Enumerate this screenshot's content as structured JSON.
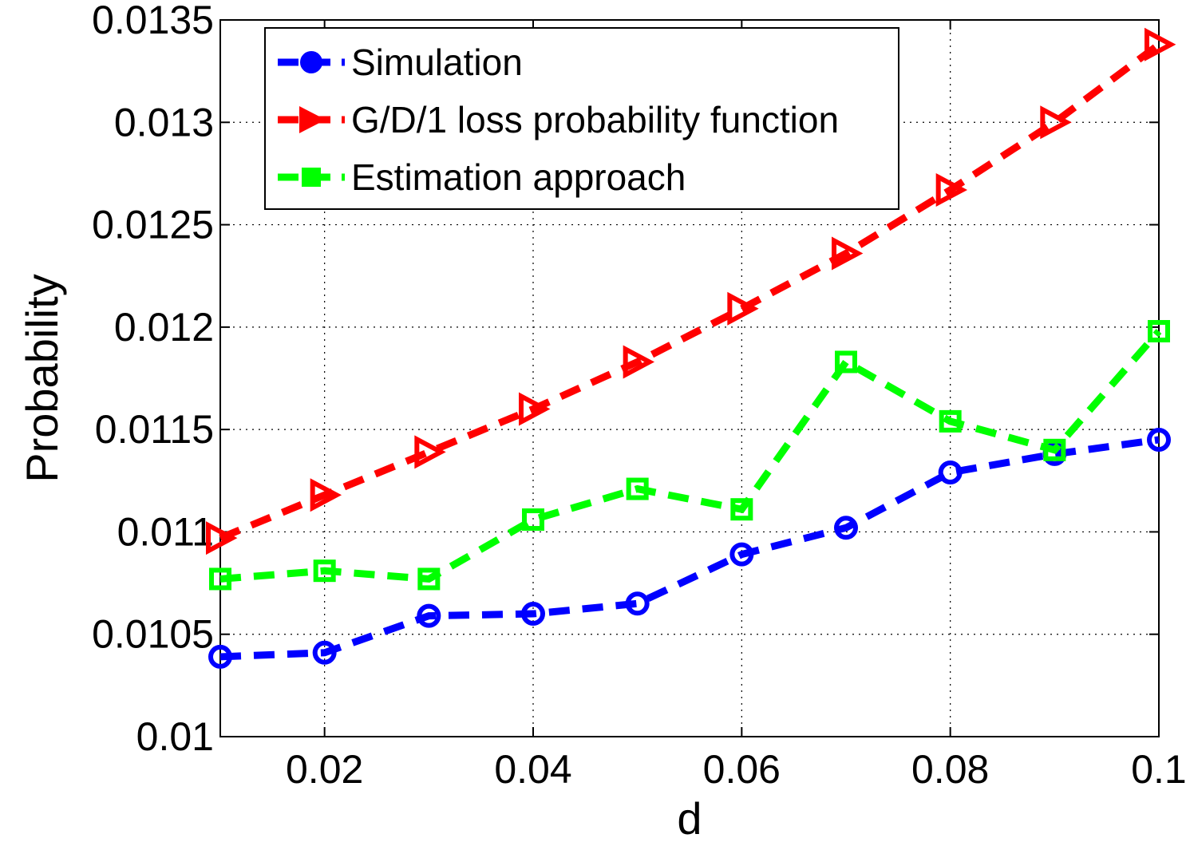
{
  "chart_data": {
    "type": "line",
    "title": "",
    "xlabel": "d",
    "ylabel": "Probability",
    "xlim": [
      0.01,
      0.1
    ],
    "ylim": [
      0.01,
      0.0135
    ],
    "grid": true,
    "legend_position": "top-left",
    "x_ticks": [
      0.02,
      0.04,
      0.06,
      0.08,
      0.1
    ],
    "x_tick_labels": [
      "0.02",
      "0.04",
      "0.06",
      "0.08",
      "0.1"
    ],
    "y_ticks": [
      0.01,
      0.0105,
      0.011,
      0.0115,
      0.012,
      0.0125,
      0.013,
      0.0135
    ],
    "y_tick_labels": [
      "0.01",
      "0.0105",
      "0.011",
      "0.0115",
      "0.012",
      "0.0125",
      "0.013",
      "0.0135"
    ],
    "x": [
      0.01,
      0.02,
      0.03,
      0.04,
      0.05,
      0.06,
      0.07,
      0.08,
      0.09,
      0.1
    ],
    "series": [
      {
        "name": "Simulation",
        "color": "#0000ff",
        "marker": "circle",
        "values": [
          0.01039,
          0.01041,
          0.01059,
          0.0106,
          0.01065,
          0.01089,
          0.01102,
          0.01129,
          0.01138,
          0.01145
        ]
      },
      {
        "name": "G/D/1 loss probability function",
        "color": "#ff0000",
        "marker": "triangle-right",
        "values": [
          0.01097,
          0.01118,
          0.01139,
          0.0116,
          0.01183,
          0.01209,
          0.01236,
          0.01267,
          0.013,
          0.01338
        ]
      },
      {
        "name": "Estimation approach",
        "color": "#00ff00",
        "marker": "square",
        "values": [
          0.01077,
          0.01081,
          0.01077,
          0.01106,
          0.01121,
          0.01111,
          0.01183,
          0.01154,
          0.0114,
          0.01198
        ]
      }
    ]
  }
}
